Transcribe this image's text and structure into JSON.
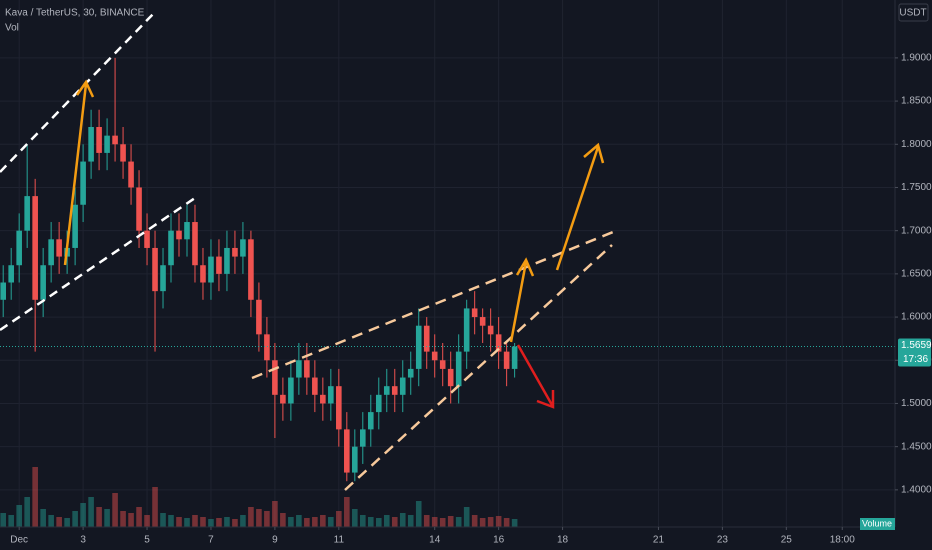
{
  "chart_data": {
    "type": "candlestick",
    "title": "Kava / TetherUS, 30, BINANCE",
    "indicator": "Vol",
    "currency": "USDT",
    "x": [
      0.5,
      0.75,
      1,
      1.25,
      1.5,
      1.75,
      2,
      2.25,
      2.5,
      2.75,
      3,
      3.25,
      3.5,
      3.75,
      4,
      4.25,
      4.5,
      4.75,
      5,
      5.25,
      5.5,
      5.75,
      6,
      6.25,
      6.5,
      6.75,
      7,
      7.25,
      7.5,
      7.75,
      8,
      8.25,
      8.5,
      8.75,
      9,
      9.25,
      9.5,
      9.75,
      10,
      10.25,
      10.5,
      10.75,
      11,
      11.25,
      11.5,
      11.75,
      12,
      12.25,
      12.5,
      12.75,
      13,
      13.25,
      13.5,
      13.75,
      14,
      14.25,
      14.5,
      14.75,
      15,
      15.25,
      15.5,
      15.75,
      16,
      16.25,
      16.5
    ],
    "open": [
      1.62,
      1.64,
      1.66,
      1.7,
      1.74,
      1.62,
      1.66,
      1.69,
      1.67,
      1.68,
      1.73,
      1.78,
      1.82,
      1.79,
      1.81,
      1.8,
      1.78,
      1.75,
      1.7,
      1.68,
      1.63,
      1.66,
      1.7,
      1.69,
      1.71,
      1.66,
      1.64,
      1.67,
      1.65,
      1.68,
      1.67,
      1.69,
      1.62,
      1.58,
      1.55,
      1.51,
      1.5,
      1.53,
      1.55,
      1.53,
      1.51,
      1.5,
      1.52,
      1.47,
      1.42,
      1.45,
      1.47,
      1.49,
      1.51,
      1.52,
      1.51,
      1.53,
      1.54,
      1.59,
      1.56,
      1.55,
      1.54,
      1.52,
      1.56,
      1.61,
      1.6,
      1.59,
      1.58,
      1.56,
      1.54
    ],
    "high": [
      1.66,
      1.68,
      1.72,
      1.8,
      1.76,
      1.68,
      1.71,
      1.71,
      1.7,
      1.75,
      1.8,
      1.84,
      1.84,
      1.83,
      1.9,
      1.82,
      1.8,
      1.77,
      1.72,
      1.7,
      1.68,
      1.72,
      1.72,
      1.73,
      1.73,
      1.68,
      1.69,
      1.69,
      1.7,
      1.7,
      1.71,
      1.7,
      1.64,
      1.6,
      1.57,
      1.53,
      1.55,
      1.57,
      1.57,
      1.55,
      1.53,
      1.54,
      1.54,
      1.49,
      1.47,
      1.49,
      1.51,
      1.53,
      1.54,
      1.54,
      1.55,
      1.56,
      1.61,
      1.6,
      1.58,
      1.57,
      1.56,
      1.58,
      1.62,
      1.63,
      1.61,
      1.61,
      1.6,
      1.57,
      1.57
    ],
    "low": [
      1.6,
      1.62,
      1.64,
      1.68,
      1.56,
      1.6,
      1.64,
      1.65,
      1.65,
      1.66,
      1.71,
      1.76,
      1.77,
      1.77,
      1.78,
      1.76,
      1.73,
      1.68,
      1.66,
      1.56,
      1.61,
      1.64,
      1.67,
      1.67,
      1.64,
      1.62,
      1.62,
      1.63,
      1.63,
      1.65,
      1.65,
      1.6,
      1.56,
      1.53,
      1.46,
      1.48,
      1.48,
      1.51,
      1.51,
      1.49,
      1.48,
      1.48,
      1.45,
      1.41,
      1.41,
      1.43,
      1.45,
      1.47,
      1.49,
      1.49,
      1.49,
      1.51,
      1.52,
      1.54,
      1.53,
      1.52,
      1.5,
      1.5,
      1.54,
      1.58,
      1.57,
      1.56,
      1.54,
      1.52,
      1.53
    ],
    "close": [
      1.64,
      1.66,
      1.7,
      1.74,
      1.62,
      1.66,
      1.69,
      1.67,
      1.68,
      1.73,
      1.78,
      1.82,
      1.79,
      1.81,
      1.8,
      1.78,
      1.75,
      1.7,
      1.68,
      1.63,
      1.66,
      1.7,
      1.69,
      1.71,
      1.66,
      1.64,
      1.67,
      1.65,
      1.68,
      1.67,
      1.69,
      1.62,
      1.58,
      1.55,
      1.51,
      1.5,
      1.53,
      1.55,
      1.53,
      1.51,
      1.5,
      1.52,
      1.47,
      1.42,
      1.45,
      1.47,
      1.49,
      1.51,
      1.52,
      1.51,
      1.53,
      1.54,
      1.59,
      1.56,
      1.55,
      1.54,
      1.52,
      1.56,
      1.61,
      1.6,
      1.59,
      1.58,
      1.56,
      1.54,
      1.5659
    ],
    "volume": [
      14,
      12,
      22,
      30,
      60,
      18,
      12,
      10,
      9,
      16,
      24,
      30,
      20,
      18,
      34,
      16,
      14,
      20,
      12,
      40,
      14,
      12,
      10,
      9,
      12,
      10,
      8,
      9,
      10,
      8,
      12,
      20,
      18,
      16,
      26,
      14,
      10,
      12,
      9,
      10,
      12,
      10,
      16,
      30,
      18,
      12,
      10,
      9,
      12,
      10,
      14,
      12,
      26,
      12,
      10,
      9,
      11,
      10,
      20,
      12,
      9,
      10,
      11,
      9,
      8
    ],
    "volume_label": "Volume",
    "up_color": "#26a69a",
    "down_color": "#ef5350",
    "last_price": 1.5659,
    "countdown": "17:36",
    "xlim": [
      0.4,
      28.4
    ],
    "ylim": [
      1.357,
      1.967
    ],
    "xticks": [
      {
        "value": 1,
        "label": "Dec"
      },
      3,
      5,
      7,
      9,
      11,
      14,
      16,
      18,
      21,
      23,
      25,
      {
        "value": 26.75,
        "label": "18:00"
      }
    ],
    "yticks": [
      {
        "value": 1.4,
        "label": "1.4000"
      },
      {
        "value": 1.45,
        "label": "1.4500"
      },
      {
        "value": 1.5,
        "label": "1.5000"
      },
      {
        "value": 1.55,
        "label": "1.5500"
      },
      {
        "value": 1.6,
        "label": "1.6000"
      },
      {
        "value": 1.65,
        "label": "1.6500"
      },
      {
        "value": 1.7,
        "label": "1.7000"
      },
      {
        "value": 1.75,
        "label": "1.7500"
      },
      {
        "value": 1.8,
        "label": "1.8000"
      },
      {
        "value": 1.85,
        "label": "1.8500"
      },
      {
        "value": 1.9,
        "label": "1.9000"
      }
    ],
    "grid": true
  }
}
